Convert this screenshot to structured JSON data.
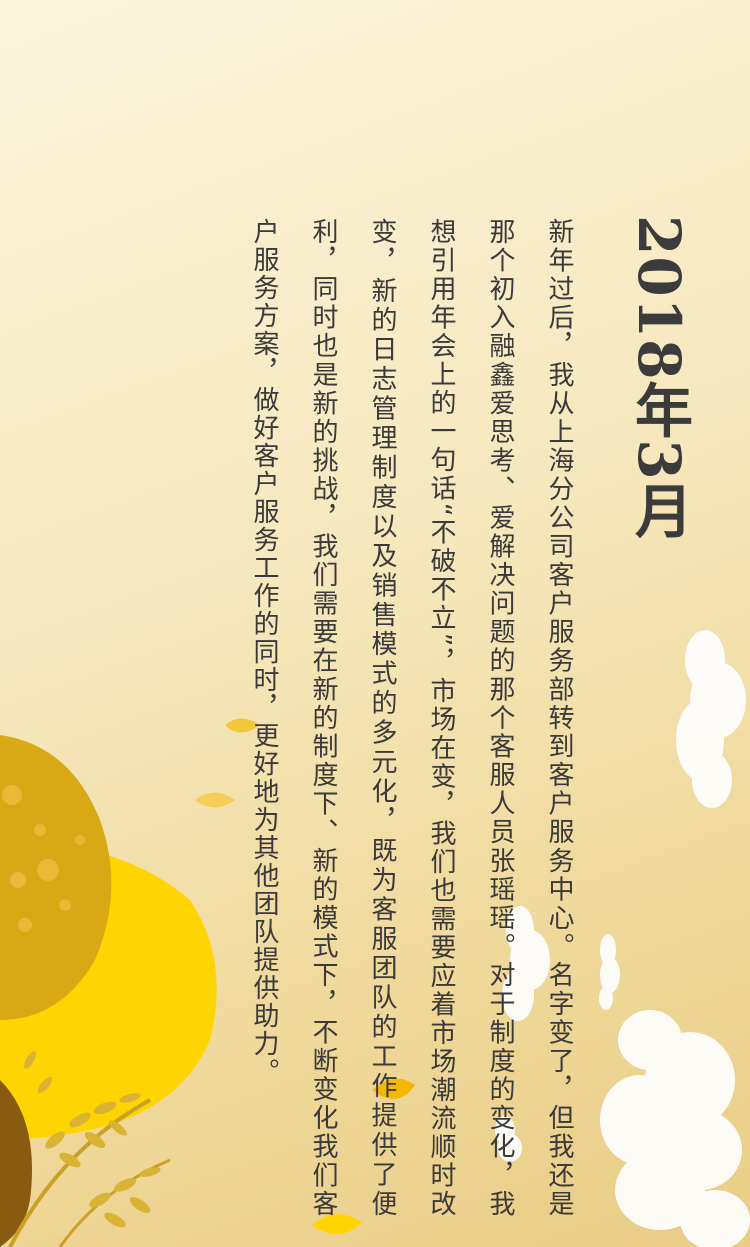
{
  "title": "2018年3月",
  "body": "新年过后，我从上海分公司客户服务部转到客户服务中心。名字变了，但我还是那个初入融鑫爱思考、爱解决问题的那个客服人员张瑶瑶。对于制度的变化，我想引用年会上的一句话“不破不立”，市场在变，我们也需要应着市场潮流顺时改变，新的日志管理制度以及销售模式的多元化，既为客服团队的工作提供了便利，同时也是新的挑战，我们需要在新的制度下、新的模式下，不断变化我们客户服务方案，做好客户服务工作的同时，更好地为其他团队提供助力。",
  "colors": {
    "background": "#f6e8bd",
    "text": "#3a3a3a",
    "title": "#3b3b3b",
    "yellow": "#ffd400",
    "ochre": "#d9a815",
    "cloud": "#ffffff"
  }
}
